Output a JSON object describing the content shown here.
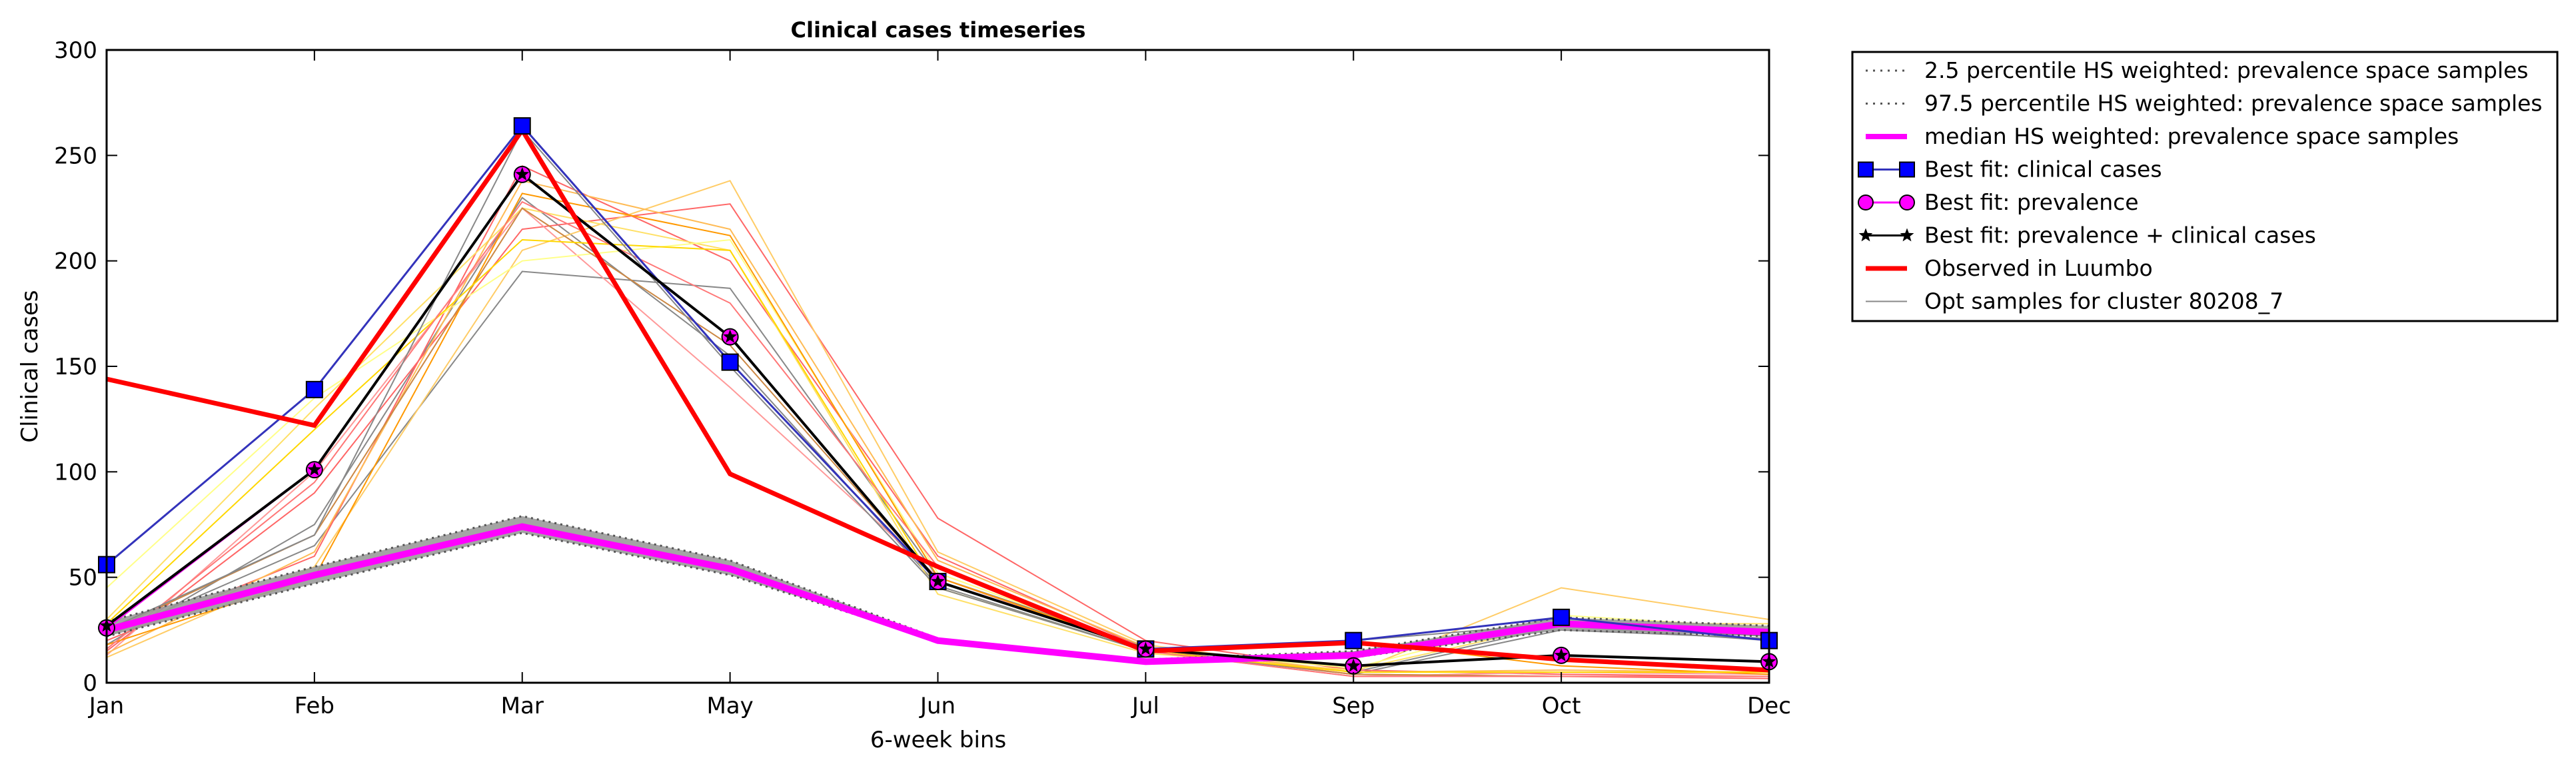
{
  "chart_data": {
    "type": "line",
    "title": "Clinical cases timeseries",
    "xlabel": "6-week bins",
    "ylabel": "Clinical cases",
    "categories": [
      "Jan",
      "Feb",
      "Mar",
      "May",
      "Jun",
      "Jul",
      "Sep",
      "Oct",
      "Dec"
    ],
    "yticks": [
      0,
      50,
      100,
      150,
      200,
      250,
      300
    ],
    "ylim": [
      0,
      300
    ],
    "grid": false,
    "legend_position": "outside-right",
    "series": [
      {
        "name": "2.5 percentile HS weighted: prevalence space samples",
        "style": "dotted",
        "color": "#555555",
        "values": [
          22,
          47,
          71,
          51,
          20,
          10,
          12,
          25,
          22
        ]
      },
      {
        "name": "97.5 percentile HS weighted: prevalence space samples",
        "style": "dotted",
        "color": "#555555",
        "values": [
          29,
          55,
          79,
          58,
          21,
          11,
          15,
          31,
          27
        ]
      },
      {
        "name": "median HS weighted: prevalence space samples",
        "style": "solid",
        "color": "#ff00ff",
        "values": [
          25,
          51,
          74,
          54,
          20,
          10,
          13,
          28,
          24
        ]
      },
      {
        "name": "Best fit: clinical cases",
        "style": "square-marker",
        "color": "#0000ff",
        "values": [
          56,
          139,
          264,
          152,
          48,
          16,
          20,
          31,
          20
        ]
      },
      {
        "name": "Best fit: prevalence",
        "style": "circle-marker",
        "color": "#ff00ff",
        "values": [
          26,
          101,
          241,
          164,
          48,
          16,
          8,
          13,
          10
        ]
      },
      {
        "name": "Best fit: prevalence + clinical cases",
        "style": "star-marker",
        "color": "#000000",
        "values": [
          27,
          101,
          241,
          164,
          48,
          16,
          8,
          13,
          10
        ]
      },
      {
        "name": "Observed in Luumbo",
        "style": "solid",
        "color": "#ff0000",
        "values": [
          144,
          122,
          262,
          99,
          55,
          15,
          19,
          11,
          6
        ]
      },
      {
        "name": "Opt samples for cluster 80208_7",
        "style": "solid",
        "color": "#888888",
        "values": [
          25,
          70,
          262,
          150,
          45,
          15,
          20,
          28,
          22
        ]
      }
    ],
    "sample_lines": [
      {
        "color": "#888888",
        "values": [
          22,
          65,
          195,
          187,
          50,
          17,
          5,
          27,
          20
        ]
      },
      {
        "color": "#888888",
        "values": [
          18,
          75,
          230,
          155,
          46,
          15,
          4,
          25,
          21
        ]
      },
      {
        "color": "#ff6666",
        "values": [
          15,
          90,
          215,
          227,
          78,
          20,
          6,
          4,
          3
        ]
      },
      {
        "color": "#ff6666",
        "values": [
          20,
          60,
          245,
          200,
          60,
          16,
          4,
          3,
          2
        ]
      },
      {
        "color": "#ff9999",
        "values": [
          13,
          100,
          225,
          140,
          50,
          15,
          3,
          5,
          4
        ]
      },
      {
        "color": "#ffcc66",
        "values": [
          12,
          55,
          205,
          238,
          62,
          18,
          5,
          45,
          30
        ]
      },
      {
        "color": "#ffe066",
        "values": [
          30,
          130,
          225,
          205,
          42,
          14,
          6,
          28,
          28
        ]
      },
      {
        "color": "#ffff88",
        "values": [
          45,
          135,
          200,
          210,
          52,
          16,
          7,
          32,
          26
        ]
      },
      {
        "color": "#ffbb55",
        "values": [
          14,
          62,
          238,
          215,
          58,
          17,
          5,
          6,
          5
        ]
      },
      {
        "color": "#ff9900",
        "values": [
          18,
          50,
          232,
          212,
          50,
          16,
          20,
          8,
          4
        ]
      },
      {
        "color": "#cc8844",
        "values": [
          24,
          70,
          225,
          160,
          48,
          16,
          4,
          3,
          3
        ]
      },
      {
        "color": "#ffd700",
        "values": [
          28,
          120,
          210,
          205,
          45,
          15,
          5,
          5,
          5
        ]
      },
      {
        "color": "#ff7777",
        "values": [
          16,
          95,
          228,
          180,
          55,
          15,
          3,
          3,
          3
        ]
      }
    ]
  }
}
